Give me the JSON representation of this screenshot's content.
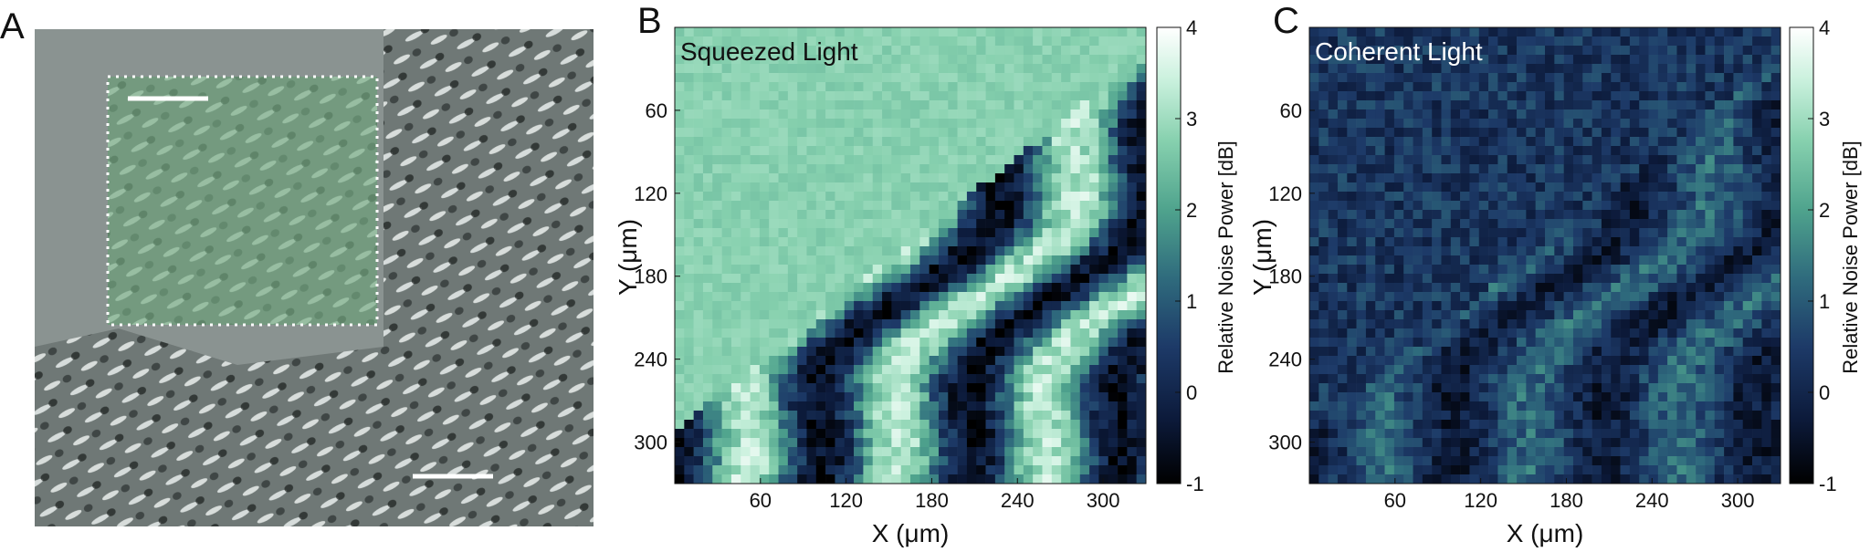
{
  "panel_a": {
    "letter": "A",
    "colors": {
      "tissue_bg": "#8a9391",
      "roi_tint": "#66c27a"
    }
  },
  "panel_b": {
    "letter": "B",
    "label": "Squeezed Light",
    "label_color": "#111111",
    "xlabel": "X (μm)",
    "ylabel": "Y (μm)",
    "xticks": [
      "60",
      "120",
      "180",
      "240",
      "300"
    ],
    "yticks": [
      "60",
      "120",
      "180",
      "240",
      "300"
    ],
    "colorbar_label": "Relative Noise Power [dB]",
    "colorbar_ticks": [
      "4",
      "3",
      "2",
      "1",
      "0",
      "-1"
    ]
  },
  "panel_c": {
    "letter": "C",
    "label": "Coherent Light",
    "label_color": "#ffffff",
    "xlabel": "X (μm)",
    "ylabel": "Y (μm)",
    "xticks": [
      "60",
      "120",
      "180",
      "240",
      "300"
    ],
    "yticks": [
      "60",
      "120",
      "180",
      "240",
      "300"
    ],
    "colorbar_label": "Relative Noise Power [dB]",
    "colorbar_ticks": [
      "4",
      "3",
      "2",
      "1",
      "0",
      "-1"
    ]
  },
  "colormap": [
    "#000000",
    "#0c1a3a",
    "#1d3a68",
    "#2f6b7d",
    "#4fa38d",
    "#86d0ae",
    "#c8f0dc",
    "#ffffff"
  ]
}
